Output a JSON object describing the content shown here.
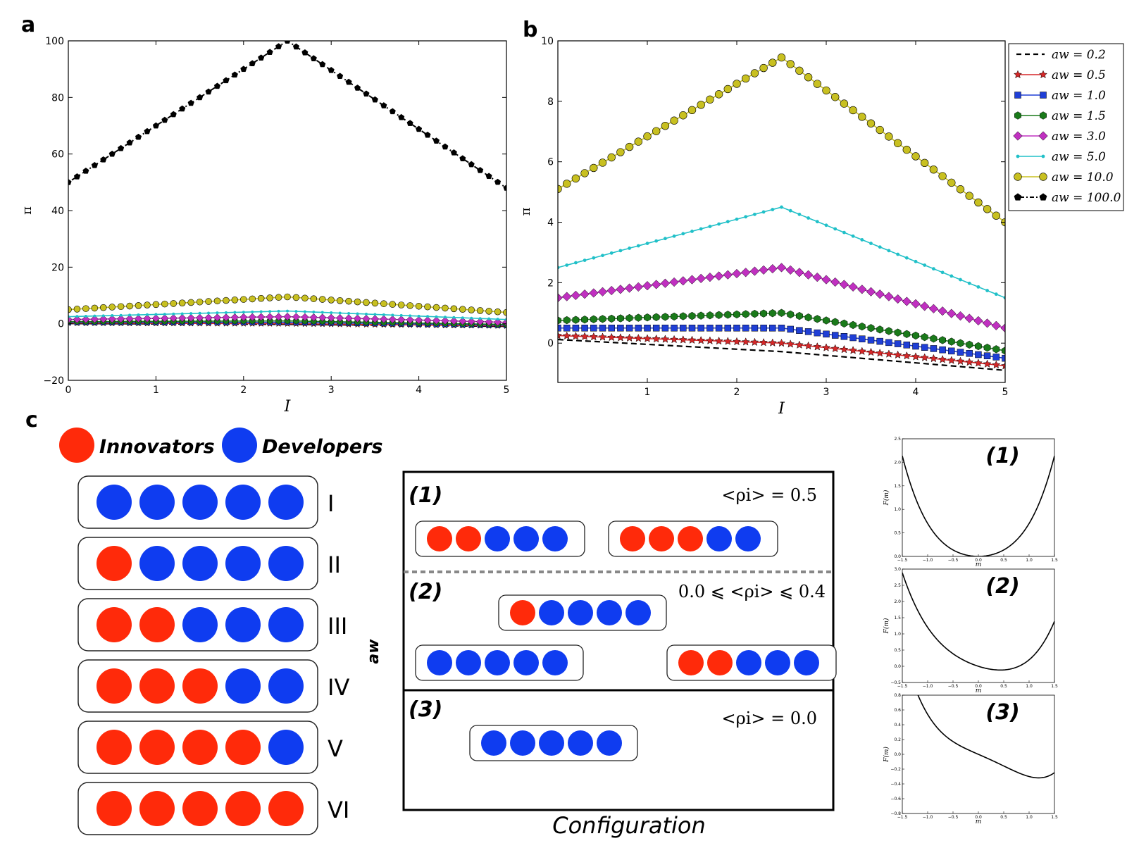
{
  "panels": {
    "a": "a",
    "b": "b",
    "c": "c"
  },
  "chart_data": [
    {
      "id": "a",
      "type": "line",
      "xlabel": "I",
      "ylabel": "π",
      "xlim": [
        0,
        5
      ],
      "ylim": [
        -20,
        100
      ],
      "xticks": [
        "0",
        "1",
        "2",
        "3",
        "4",
        "5"
      ],
      "yticks": [
        "−20",
        "0",
        "20",
        "40",
        "60",
        "80",
        "100"
      ],
      "ytick_values": [
        -20,
        0,
        20,
        40,
        60,
        80,
        100
      ],
      "xtick_values": [
        0,
        1,
        2,
        3,
        4,
        5
      ],
      "series": [
        {
          "name": "aw=0.2",
          "start": 0.1,
          "peak": -0.2,
          "end": -0.9,
          "color": "#000000",
          "style": "dashed"
        },
        {
          "name": "aw=0.5",
          "start": 0.25,
          "peak": 0.0,
          "end": -0.75,
          "color": "#d62728",
          "style": "star"
        },
        {
          "name": "aw=1.0",
          "start": 0.5,
          "peak": 0.5,
          "end": -0.5,
          "color": "#1f3fd6",
          "style": "square"
        },
        {
          "name": "aw=1.5",
          "start": 0.75,
          "peak": 1.0,
          "end": -0.25,
          "color": "#1a7a1a",
          "style": "hexagon"
        },
        {
          "name": "aw=3.0",
          "start": 1.5,
          "peak": 2.5,
          "end": 0.5,
          "color": "#c030c0",
          "style": "diamond"
        },
        {
          "name": "aw=5.0",
          "start": 2.5,
          "peak": 4.5,
          "end": 1.5,
          "color": "#20c0c8",
          "style": "dot"
        },
        {
          "name": "aw=10.0",
          "start": 5.0,
          "peak": 9.5,
          "end": 4.0,
          "color": "#c8c020",
          "style": "circle"
        },
        {
          "name": "aw=100.0",
          "start": 50.0,
          "peak": 100.0,
          "end": 48.0,
          "color": "#000000",
          "style": "pentagon"
        }
      ]
    },
    {
      "id": "b",
      "type": "line",
      "xlabel": "I",
      "ylabel": "π",
      "xlim": [
        0,
        5
      ],
      "ylim": [
        -1.3,
        10
      ],
      "xticks": [
        "1",
        "2",
        "3",
        "4",
        "5"
      ],
      "xtick_values": [
        1,
        2,
        3,
        4,
        5
      ],
      "yticks": [
        "0",
        "2",
        "4",
        "6",
        "8",
        "10"
      ],
      "ytick_values": [
        0,
        2,
        4,
        6,
        8,
        10
      ],
      "legend_position": "outside-right",
      "legend": [
        "aw = 0.2",
        "aw = 0.5",
        "aw = 1.0",
        "aw = 1.5",
        "aw = 3.0",
        "aw = 5.0",
        "aw = 10.0",
        "aw = 100.0"
      ],
      "series": [
        {
          "name": "aw=0.2",
          "start": 0.12,
          "peak": -0.28,
          "end": -0.9,
          "color": "#000000",
          "style": "dashed"
        },
        {
          "name": "aw=0.5",
          "start": 0.25,
          "peak": 0.0,
          "end": -0.75,
          "color": "#d62728",
          "style": "star"
        },
        {
          "name": "aw=1.0",
          "start": 0.5,
          "peak": 0.5,
          "end": -0.5,
          "color": "#1f3fd6",
          "style": "square"
        },
        {
          "name": "aw=1.5",
          "start": 0.75,
          "peak": 1.0,
          "end": -0.25,
          "color": "#1a7a1a",
          "style": "hexagon"
        },
        {
          "name": "aw=3.0",
          "start": 1.5,
          "peak": 2.5,
          "end": 0.5,
          "color": "#c030c0",
          "style": "diamond"
        },
        {
          "name": "aw=5.0",
          "start": 2.5,
          "peak": 4.5,
          "end": 1.5,
          "color": "#20c0c8",
          "style": "dot"
        },
        {
          "name": "aw=10.0",
          "start": 5.1,
          "peak": 9.45,
          "end": 4.0,
          "color": "#c8c020",
          "style": "circle"
        }
      ]
    },
    {
      "id": "c1",
      "type": "line",
      "title": "(1)",
      "xlabel": "m",
      "ylabel": "F(m)",
      "xlim": [
        -1.5,
        1.5
      ],
      "ylim": [
        0.0,
        2.5
      ],
      "xticks": [
        "−1.5",
        "−1.0",
        "−0.5",
        "0.0",
        "0.5",
        "1.0",
        "1.5"
      ],
      "xtick_values": [
        -1.5,
        -1.0,
        -0.5,
        0.0,
        0.5,
        1.0,
        1.5
      ],
      "yticks": [
        "0.0",
        "0.5",
        "1.0",
        "1.5",
        "2.0",
        "2.5"
      ],
      "ytick_values": [
        0.0,
        0.5,
        1.0,
        1.5,
        2.0,
        2.5
      ],
      "curve": {
        "a1": 0.0,
        "a2": 0.5,
        "a3": 0.0,
        "a4": 0.2,
        "c": 0.0
      }
    },
    {
      "id": "c2",
      "type": "line",
      "title": "(2)",
      "xlabel": "m",
      "ylabel": "F(m)",
      "xlim": [
        -1.5,
        1.5
      ],
      "ylim": [
        -0.5,
        3.0
      ],
      "xticks": [
        "−1.5",
        "−1.0",
        "−0.5",
        "0.0",
        "0.5",
        "1.0",
        "1.5"
      ],
      "xtick_values": [
        -1.5,
        -1.0,
        -0.5,
        0.0,
        0.5,
        1.0,
        1.5
      ],
      "yticks": [
        "−0.5",
        "0.0",
        "0.5",
        "1.0",
        "1.5",
        "2.0",
        "2.5",
        "3.0"
      ],
      "ytick_values": [
        -0.5,
        0.0,
        0.5,
        1.0,
        1.5,
        2.0,
        2.5,
        3.0
      ],
      "curve": {
        "a1": -0.5,
        "a2": 0.5,
        "a3": 0.0,
        "a4": 0.2,
        "c": 0.0
      }
    },
    {
      "id": "c3",
      "type": "line",
      "title": "(3)",
      "xlabel": "m",
      "ylabel": "F(m)",
      "xlim": [
        -1.5,
        1.5
      ],
      "ylim": [
        -0.8,
        0.8
      ],
      "xticks": [
        "−1.5",
        "−1.0",
        "−0.5",
        "0.0",
        "0.5",
        "1.0",
        "1.5"
      ],
      "xtick_values": [
        -1.5,
        -1.0,
        -0.5,
        0.0,
        0.5,
        1.0,
        1.5
      ],
      "yticks": [
        "−0.8",
        "−0.6",
        "−0.4",
        "−0.2",
        "0.0",
        "0.2",
        "0.4",
        "0.6",
        "0.8"
      ],
      "ytick_values": [
        -0.8,
        -0.6,
        -0.4,
        -0.2,
        0.0,
        0.2,
        0.4,
        0.6,
        0.8
      ],
      "curve": {
        "a1": -0.3,
        "a2": 0.0,
        "a3": -0.12,
        "a4": 0.12,
        "c": 0.0
      }
    }
  ],
  "legend_c": {
    "innovators": "Innovators",
    "developers": "Developers",
    "innovator_color": "#ff2a0a",
    "developer_color": "#0f3cf0"
  },
  "configurations": [
    {
      "label": "I",
      "innovators": 0
    },
    {
      "label": "II",
      "innovators": 1
    },
    {
      "label": "III",
      "innovators": 2
    },
    {
      "label": "IV",
      "innovators": 3
    },
    {
      "label": "V",
      "innovators": 4
    },
    {
      "label": "VI",
      "innovators": 5
    }
  ],
  "regimes": {
    "axis_label": "aw",
    "footer": "Configuration",
    "r1": {
      "label": "(1)",
      "rho": "<ρi> = 0.5",
      "groups": [
        2,
        3
      ]
    },
    "r2": {
      "label": "(2)",
      "rho": "0.0 ⩽ <ρi> ⩽ 0.4",
      "groups": [
        1,
        0,
        2
      ]
    },
    "r3": {
      "label": "(3)",
      "rho": "<ρi> = 0.0",
      "groups": [
        0
      ]
    }
  }
}
